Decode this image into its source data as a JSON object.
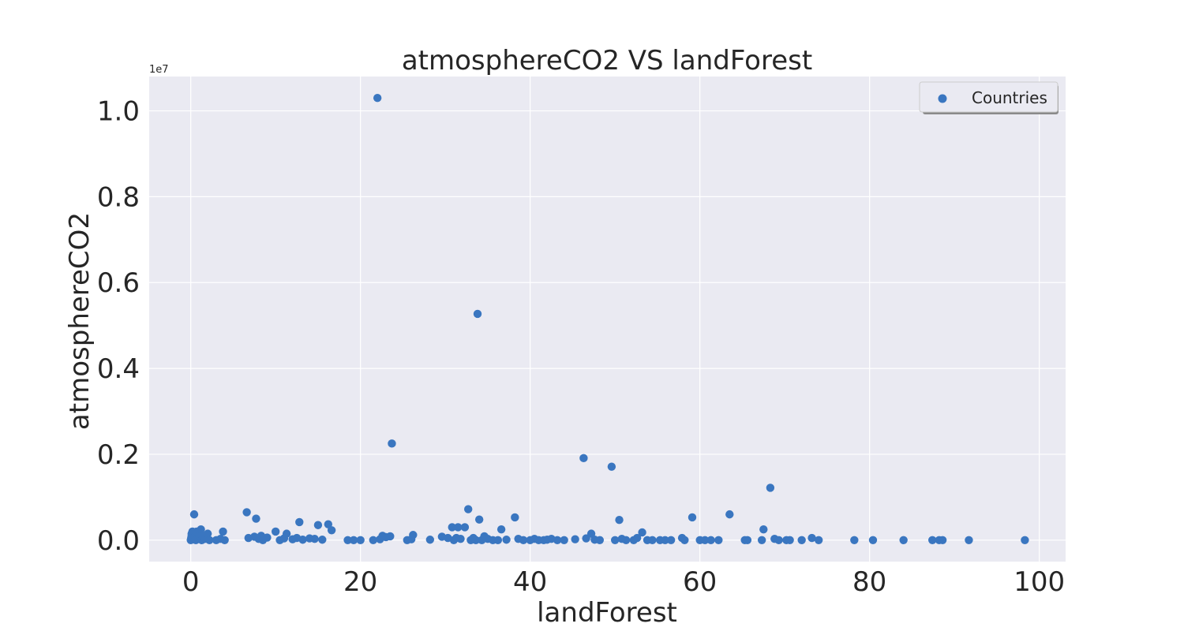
{
  "chart_data": {
    "type": "scatter",
    "title": "atmosphereCO2 VS landForest",
    "xlabel": "landForest",
    "ylabel": "atmosphereCO2",
    "y_offset_label": "1e7",
    "xlim": [
      -4.9,
      103.1
    ],
    "ylim": [
      -0.05,
      1.08
    ],
    "x_ticks": [
      0,
      20,
      40,
      60,
      80,
      100
    ],
    "y_ticks": [
      0.0,
      0.2,
      0.4,
      0.6,
      0.8,
      1.0
    ],
    "x_tick_labels": [
      "0",
      "20",
      "40",
      "60",
      "80",
      "100"
    ],
    "y_tick_labels": [
      "0.0",
      "0.2",
      "0.4",
      "0.6",
      "0.8",
      "1.0"
    ],
    "grid": true,
    "legend_position": "top-right",
    "series": [
      {
        "name": "Countries",
        "color": "#3a76c0",
        "points": [
          [
            0.0,
            0.0
          ],
          [
            0.1,
            0.01
          ],
          [
            0.2,
            0.02
          ],
          [
            0.05,
            0.005
          ],
          [
            0.1,
            0.015
          ],
          [
            0.3,
            0.005
          ],
          [
            0.4,
            0.06
          ],
          [
            0.5,
            0.008
          ],
          [
            0.6,
            0.0
          ],
          [
            0.7,
            0.02
          ],
          [
            0.8,
            0.003
          ],
          [
            1.0,
            0.01
          ],
          [
            1.2,
            0.025
          ],
          [
            1.3,
            0.0
          ],
          [
            1.5,
            0.01
          ],
          [
            1.7,
            0.003
          ],
          [
            2.0,
            0.015
          ],
          [
            2.2,
            0.0
          ],
          [
            3.0,
            0.0
          ],
          [
            3.5,
            0.003
          ],
          [
            3.8,
            0.02
          ],
          [
            4.0,
            0.0
          ],
          [
            6.6,
            0.065
          ],
          [
            6.8,
            0.005
          ],
          [
            7.5,
            0.008
          ],
          [
            7.7,
            0.05
          ],
          [
            8.0,
            0.003
          ],
          [
            8.3,
            0.01
          ],
          [
            8.5,
            0.0
          ],
          [
            9.0,
            0.006
          ],
          [
            10.0,
            0.02
          ],
          [
            10.5,
            0.0
          ],
          [
            11.0,
            0.004
          ],
          [
            11.3,
            0.015
          ],
          [
            12.0,
            0.002
          ],
          [
            12.5,
            0.005
          ],
          [
            12.8,
            0.042
          ],
          [
            13.2,
            0.001
          ],
          [
            14.0,
            0.004
          ],
          [
            14.6,
            0.003
          ],
          [
            15.0,
            0.035
          ],
          [
            15.5,
            0.001
          ],
          [
            16.2,
            0.037
          ],
          [
            16.6,
            0.023
          ],
          [
            18.5,
            0.0
          ],
          [
            19.2,
            0.0
          ],
          [
            20.0,
            0.0
          ],
          [
            21.5,
            0.0
          ],
          [
            22.0,
            1.03
          ],
          [
            22.3,
            0.002
          ],
          [
            22.6,
            0.01
          ],
          [
            23.0,
            0.007
          ],
          [
            23.5,
            0.009
          ],
          [
            23.7,
            0.225
          ],
          [
            25.5,
            0.0
          ],
          [
            26.0,
            0.002
          ],
          [
            26.2,
            0.012
          ],
          [
            28.2,
            0.001
          ],
          [
            29.6,
            0.008
          ],
          [
            30.3,
            0.005
          ],
          [
            30.8,
            0.03
          ],
          [
            31.0,
            0.0
          ],
          [
            31.3,
            0.005
          ],
          [
            31.5,
            0.03
          ],
          [
            31.8,
            0.003
          ],
          [
            32.3,
            0.03
          ],
          [
            32.7,
            0.072
          ],
          [
            33.0,
            0.0
          ],
          [
            33.3,
            0.005
          ],
          [
            33.6,
            0.0
          ],
          [
            33.8,
            0.527
          ],
          [
            34.0,
            0.048
          ],
          [
            34.3,
            0.0
          ],
          [
            34.6,
            0.009
          ],
          [
            35.0,
            0.003
          ],
          [
            35.6,
            0.0
          ],
          [
            36.2,
            0.0
          ],
          [
            36.6,
            0.025
          ],
          [
            37.2,
            0.001
          ],
          [
            38.2,
            0.053
          ],
          [
            38.6,
            0.003
          ],
          [
            39.2,
            0.0
          ],
          [
            40.0,
            0.0
          ],
          [
            40.5,
            0.003
          ],
          [
            41.0,
            0.0
          ],
          [
            41.6,
            0.0
          ],
          [
            42.0,
            0.001
          ],
          [
            42.5,
            0.003
          ],
          [
            43.2,
            0.0
          ],
          [
            44.0,
            0.0
          ],
          [
            45.3,
            0.002
          ],
          [
            46.3,
            0.191
          ],
          [
            46.6,
            0.004
          ],
          [
            47.2,
            0.015
          ],
          [
            47.6,
            0.001
          ],
          [
            48.2,
            0.0
          ],
          [
            49.6,
            0.171
          ],
          [
            50.0,
            0.0
          ],
          [
            50.5,
            0.047
          ],
          [
            50.8,
            0.003
          ],
          [
            51.3,
            0.0
          ],
          [
            52.2,
            0.0
          ],
          [
            52.6,
            0.005
          ],
          [
            53.2,
            0.018
          ],
          [
            53.8,
            0.0
          ],
          [
            54.4,
            0.0
          ],
          [
            55.3,
            0.0
          ],
          [
            55.9,
            0.0
          ],
          [
            56.6,
            0.0
          ],
          [
            57.9,
            0.005
          ],
          [
            58.2,
            0.0
          ],
          [
            59.1,
            0.053
          ],
          [
            60.0,
            0.0
          ],
          [
            60.6,
            0.0
          ],
          [
            61.3,
            0.0
          ],
          [
            62.2,
            0.0
          ],
          [
            63.5,
            0.06
          ],
          [
            65.3,
            0.0
          ],
          [
            65.6,
            0.0
          ],
          [
            67.3,
            0.0
          ],
          [
            67.5,
            0.025
          ],
          [
            68.3,
            0.122
          ],
          [
            68.8,
            0.003
          ],
          [
            69.3,
            0.0
          ],
          [
            70.2,
            0.0
          ],
          [
            70.6,
            0.0
          ],
          [
            72.0,
            0.0
          ],
          [
            73.2,
            0.005
          ],
          [
            74.0,
            0.0
          ],
          [
            78.2,
            0.0
          ],
          [
            80.4,
            0.0
          ],
          [
            84.0,
            0.0
          ],
          [
            87.4,
            0.0
          ],
          [
            88.2,
            0.0
          ],
          [
            88.6,
            0.0
          ],
          [
            91.7,
            0.0
          ],
          [
            98.3,
            0.0
          ]
        ]
      }
    ]
  },
  "colors": {
    "plot_background": "#eaeaf2",
    "grid": "#ffffff",
    "text": "#262626",
    "marker": "#3a76c0"
  }
}
